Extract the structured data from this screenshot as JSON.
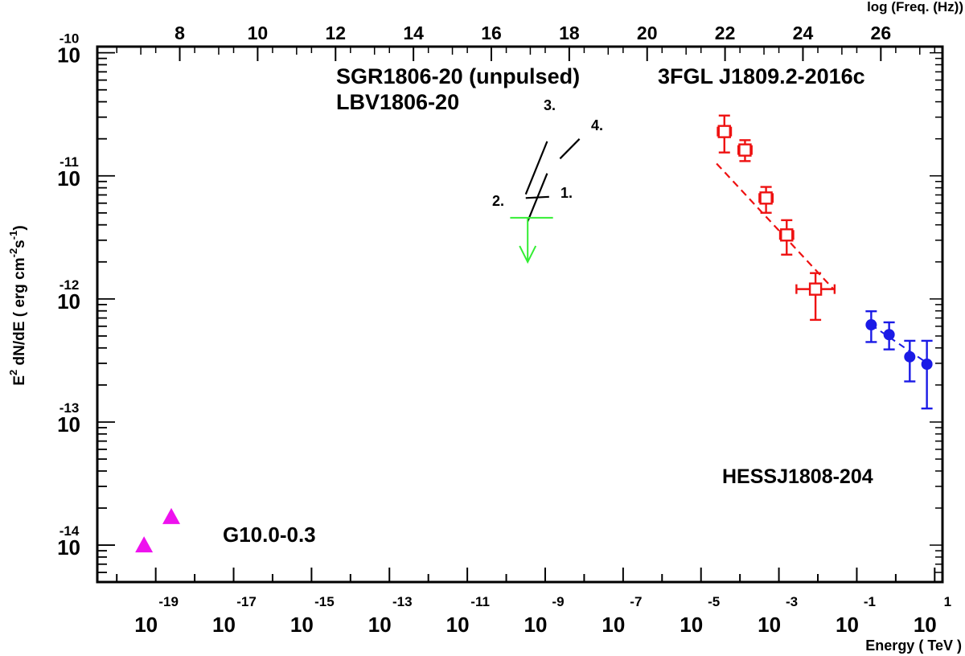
{
  "chart_data": {
    "type": "scatter",
    "x_axis_bottom": {
      "label": "Energy ( TeV )",
      "scale": "log",
      "range_exponent": [
        -20.5,
        1.2
      ],
      "tick_labels": [
        {
          "base": "10",
          "exp": "-19",
          "exponent": -19
        },
        {
          "base": "10",
          "exp": "-17",
          "exponent": -17
        },
        {
          "base": "10",
          "exp": "-15",
          "exponent": -15
        },
        {
          "base": "10",
          "exp": "-13",
          "exponent": -13
        },
        {
          "base": "10",
          "exp": "-11",
          "exponent": -11
        },
        {
          "base": "10",
          "exp": "-9",
          "exponent": -9
        },
        {
          "base": "10",
          "exp": "-7",
          "exponent": -7
        },
        {
          "base": "10",
          "exp": "-5",
          "exponent": -5
        },
        {
          "base": "10",
          "exp": "-3",
          "exponent": -3
        },
        {
          "base": "10",
          "exp": "-1",
          "exponent": -1
        },
        {
          "base": "10",
          "exp": "1",
          "exponent": 1
        }
      ]
    },
    "x_axis_top": {
      "label": "log (Freq. (Hz))",
      "tick_labels": [
        "8",
        "10",
        "12",
        "14",
        "16",
        "18",
        "20",
        "22",
        "24",
        "26"
      ],
      "tick_values": [
        8,
        10,
        12,
        14,
        16,
        18,
        20,
        22,
        24,
        26
      ]
    },
    "y_axis": {
      "label": "E2 dN/dE ( erg cm-2 s-1 )",
      "label_parts": {
        "main": "E",
        "sup": "2",
        "rest": " dN/dE ( erg cm",
        "sup2": "-2",
        "rest2": "s",
        "sup3": "-1",
        "end": ")"
      },
      "scale": "log",
      "range_exponent": [
        -14.3,
        -9.95
      ],
      "tick_labels": [
        {
          "base": "10",
          "exp": "-10",
          "exponent": -10
        },
        {
          "base": "10",
          "exp": "-11",
          "exponent": -11
        },
        {
          "base": "10",
          "exp": "-12",
          "exponent": -12
        },
        {
          "base": "10",
          "exp": "-13",
          "exponent": -13
        },
        {
          "base": "10",
          "exp": "-14",
          "exponent": -14
        }
      ]
    },
    "annotations": [
      {
        "text": "SGR1806-20 (unpulsed)",
        "color": "#000000"
      },
      {
        "text": "LBV1806-20",
        "color": "#33ee33"
      },
      {
        "text": "3FGL J1809.2-2016c",
        "color": "#ee1111"
      },
      {
        "text": "HESSJ1808-204",
        "color": "#1a1ae6"
      },
      {
        "text": "G10.0-0.3",
        "color": "#ee11ee"
      }
    ],
    "sgr_lines": [
      {
        "label": "1.",
        "x": [
          -9.5,
          -8.9
        ],
        "y": [
          -11.18,
          -11.17
        ]
      },
      {
        "label": "2.",
        "x": [
          -9.45,
          -8.95
        ],
        "y": [
          -11.37,
          -10.98
        ]
      },
      {
        "label": "3.",
        "x": [
          -9.5,
          -8.95
        ],
        "y": [
          -11.15,
          -10.72
        ]
      },
      {
        "label": "4.",
        "x": [
          -8.62,
          -8.12
        ],
        "y": [
          -10.86,
          -10.7
        ]
      }
    ],
    "lbv_upper_limit": {
      "x_range": [
        -9.9,
        -8.8
      ],
      "y": -11.34,
      "arrow_to_y": -11.7,
      "x": -9.45
    },
    "fermi_points": [
      {
        "x": -4.4,
        "y": -10.64,
        "y_lo": -10.81,
        "y_hi": -10.51,
        "x_lo": -4.57,
        "x_hi": -4.23
      },
      {
        "x": -3.87,
        "y": -10.79,
        "y_lo": -10.88,
        "y_hi": -10.71,
        "x_lo": -4.04,
        "x_hi": -3.7
      },
      {
        "x": -3.33,
        "y": -11.18,
        "y_lo": -11.3,
        "y_hi": -11.09,
        "x_lo": -3.5,
        "x_hi": -3.16
      },
      {
        "x": -2.8,
        "y": -11.48,
        "y_lo": -11.64,
        "y_hi": -11.36,
        "x_lo": -2.97,
        "x_hi": -2.63
      },
      {
        "x": -2.06,
        "y": -11.92,
        "y_lo": -12.17,
        "y_hi": -11.79,
        "x_lo": -2.55,
        "x_hi": -1.57
      }
    ],
    "fermi_fit": {
      "x": [
        -4.6,
        -1.6
      ],
      "y": [
        -10.9,
        -11.92
      ]
    },
    "hess_points": [
      {
        "x": -0.63,
        "y": -12.21,
        "y_lo": -12.35,
        "y_hi": -12.1
      },
      {
        "x": -0.17,
        "y": -12.29,
        "y_lo": -12.41,
        "y_hi": -12.19
      },
      {
        "x": 0.36,
        "y": -12.47,
        "y_lo": -12.67,
        "y_hi": -12.34
      },
      {
        "x": 0.8,
        "y": -12.53,
        "y_lo": -12.89,
        "y_hi": -12.34
      }
    ],
    "hess_fit": {
      "x": [
        -0.63,
        0.8
      ],
      "y": [
        -12.21,
        -12.52
      ]
    },
    "g10_points": [
      {
        "x": -19.3,
        "y": -14.0
      },
      {
        "x": -18.6,
        "y": -13.77
      }
    ],
    "colors": {
      "axis": "#000000",
      "sgr": "#000000",
      "lbv": "#33ee33",
      "fermi": "#ee1111",
      "hess": "#1a1ae6",
      "g10": "#ee11ee"
    }
  }
}
